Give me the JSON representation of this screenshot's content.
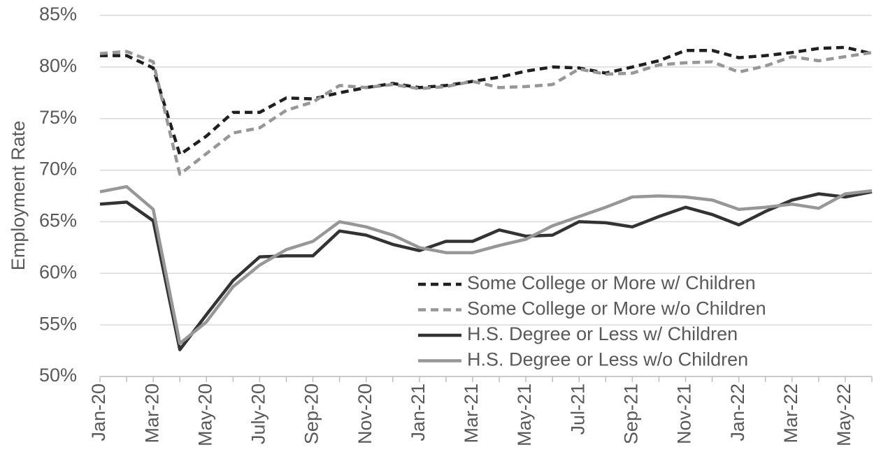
{
  "chart_data": {
    "type": "line",
    "y_label": "Employment Rate",
    "categories": [
      "Jan-20",
      null,
      "Mar-20",
      null,
      "May-20",
      null,
      "July-20",
      null,
      "Sep-20",
      null,
      "Nov-20",
      null,
      "Jan-21",
      null,
      "Mar-21",
      null,
      "May-21",
      null,
      "Jul-21",
      null,
      "Sep-21",
      null,
      "Nov-21",
      null,
      "Jan-22",
      null,
      "Mar-22",
      null,
      "May-22",
      null
    ],
    "series": [
      {
        "name": "Some College or More w/ Children",
        "color": "#1f1f1f",
        "dashed": true,
        "values": [
          81.1,
          81.1,
          79.9,
          71.5,
          73.3,
          75.6,
          75.6,
          77.0,
          76.9,
          77.5,
          78.0,
          78.4,
          78.0,
          78.2,
          78.6,
          79.0,
          79.6,
          80.0,
          79.9,
          79.4,
          80.0,
          80.6,
          81.6,
          81.6,
          80.9,
          81.1,
          81.4,
          81.8,
          81.9,
          81.3
        ]
      },
      {
        "name": "Some College or More w/o Children",
        "color": "#979797",
        "dashed": true,
        "values": [
          81.3,
          81.5,
          80.5,
          69.6,
          71.6,
          73.6,
          74.1,
          75.8,
          76.6,
          78.2,
          78.0,
          78.3,
          77.9,
          78.1,
          78.6,
          78.0,
          78.1,
          78.3,
          79.8,
          79.3,
          79.4,
          80.2,
          80.4,
          80.5,
          79.5,
          80.1,
          81.0,
          80.6,
          81.0,
          81.4
        ]
      },
      {
        "name": "H.S. Degree or Less w/ Children",
        "color": "#333333",
        "dashed": false,
        "values": [
          66.7,
          66.9,
          65.1,
          52.6,
          56.0,
          59.3,
          61.6,
          61.7,
          61.7,
          64.1,
          63.7,
          62.8,
          62.2,
          63.1,
          63.1,
          64.2,
          63.6,
          63.7,
          65.0,
          64.9,
          64.5,
          65.5,
          66.4,
          65.7,
          64.7,
          66.0,
          67.1,
          67.7,
          67.4,
          67.9
        ]
      },
      {
        "name": "H.S. Degree or Less w/o Children",
        "color": "#979797",
        "dashed": false,
        "values": [
          67.9,
          68.4,
          66.2,
          53.2,
          55.3,
          58.7,
          60.8,
          62.3,
          63.1,
          65.0,
          64.5,
          63.7,
          62.5,
          62.0,
          62.0,
          62.7,
          63.3,
          64.6,
          65.5,
          66.4,
          67.4,
          67.5,
          67.4,
          67.1,
          66.2,
          66.4,
          66.7,
          66.3,
          67.7,
          68.0
        ]
      }
    ],
    "ylim": [
      50,
      85
    ],
    "yticks": [
      {
        "value": 50,
        "label": "50%"
      },
      {
        "value": 55,
        "label": "55%"
      },
      {
        "value": 60,
        "label": "60%"
      },
      {
        "value": 65,
        "label": "65%"
      },
      {
        "value": 70,
        "label": "70%"
      },
      {
        "value": 75,
        "label": "75%"
      },
      {
        "value": 80,
        "label": "80%"
      },
      {
        "value": 85,
        "label": "85%"
      }
    ],
    "grid": true,
    "legend": "lower right"
  }
}
